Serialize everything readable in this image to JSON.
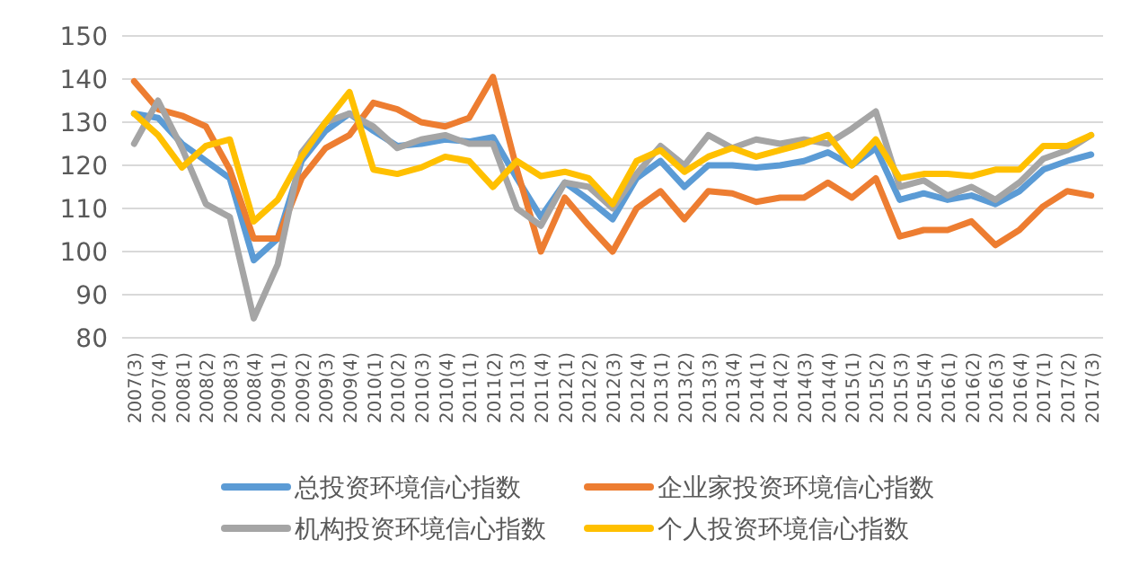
{
  "chart_data": {
    "type": "line",
    "categories": [
      "2007(3)",
      "2007(4)",
      "2008(1)",
      "2008(2)",
      "2008(3)",
      "2008(4)",
      "2009(1)",
      "2009(2)",
      "2009(3)",
      "2009(4)",
      "2010(1)",
      "2010(2)",
      "2010(3)",
      "2010(4)",
      "2011(1)",
      "2011(2)",
      "2011(3)",
      "2011(4)",
      "2012(1)",
      "2012(2)",
      "2012(3)",
      "2012(4)",
      "2013(1)",
      "2013(2)",
      "2013(3)",
      "2013(4)",
      "2014(1)",
      "2014(2)",
      "2014(3)",
      "2014(4)",
      "2015(1)",
      "2015(2)",
      "2015(3)",
      "2015(4)",
      "2016(1)",
      "2016(2)",
      "2016(3)",
      "2016(4)",
      "2017(1)",
      "2017(2)",
      "2017(3)"
    ],
    "series": [
      {
        "name": "总投资环境信心指数",
        "color": "#5b9bd5",
        "values": [
          132,
          131,
          125,
          121,
          117,
          98,
          103,
          121,
          128,
          132,
          128,
          124.5,
          125,
          126,
          125.5,
          126.5,
          117,
          108,
          116,
          112,
          107.5,
          117,
          121,
          115,
          120,
          120,
          119.5,
          120,
          121,
          123,
          120,
          124,
          112,
          113.5,
          112,
          113,
          111,
          114,
          119,
          121,
          122.5
        ]
      },
      {
        "name": "企业家投资环境信心指数",
        "color": "#ed7d31",
        "values": [
          139.5,
          133,
          131.5,
          129,
          119,
          103,
          103,
          117,
          124,
          127,
          134.5,
          133,
          130,
          129,
          131,
          140.5,
          119,
          100,
          112.5,
          106,
          100,
          110,
          114,
          107.5,
          114,
          113.5,
          111.5,
          112.5,
          112.5,
          116,
          112.5,
          117,
          103.5,
          105,
          105,
          107,
          101.5,
          105,
          110.5,
          114,
          113
        ]
      },
      {
        "name": "机构投资环境信心指数",
        "color": "#a5a5a5",
        "values": [
          125,
          135,
          124,
          111,
          108,
          84.5,
          97,
          123,
          130,
          132,
          129,
          124,
          126,
          127,
          125,
          125,
          110,
          106,
          116,
          115,
          110,
          118,
          124.5,
          120,
          127,
          124,
          126,
          125,
          126,
          125,
          128.5,
          132.5,
          115,
          116.5,
          113,
          115,
          112,
          116,
          121.5,
          123.5,
          127
        ]
      },
      {
        "name": "个人投资环境信心指数",
        "color": "#ffc000",
        "values": [
          132,
          127,
          119.5,
          124.5,
          126,
          107,
          112,
          122,
          130,
          137,
          119,
          118,
          119.5,
          122,
          121,
          115,
          121,
          117.5,
          118.5,
          117,
          111,
          121,
          123.5,
          118.5,
          122,
          124,
          122,
          123.5,
          125,
          127,
          120,
          126,
          117,
          118,
          118,
          117.5,
          119,
          119,
          124.5,
          124.5,
          127
        ]
      }
    ],
    "ylim": [
      80,
      150
    ],
    "yticks": [
      80,
      90,
      100,
      110,
      120,
      130,
      140,
      150
    ],
    "grid": "y",
    "legend": "bottom",
    "line_style": "solid"
  }
}
